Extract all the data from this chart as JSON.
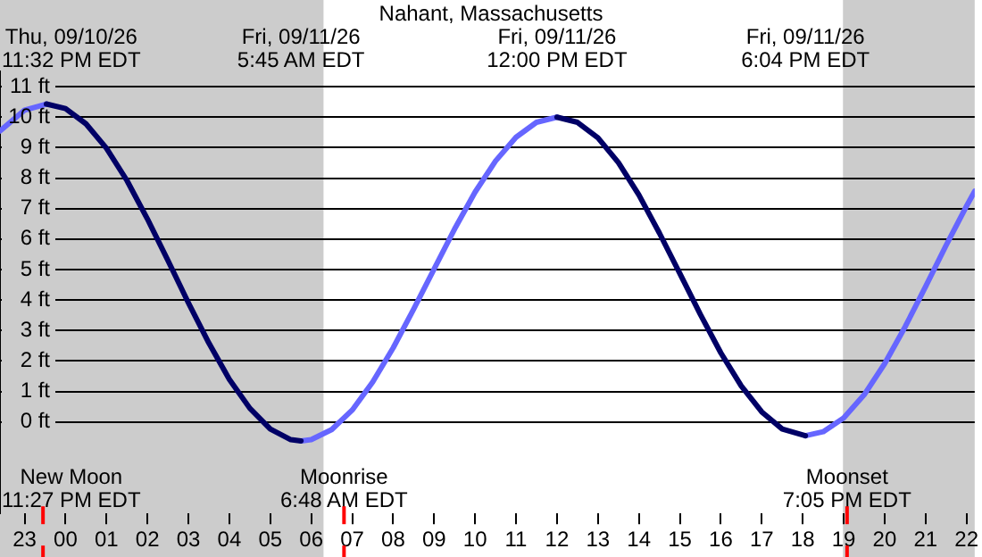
{
  "chart_data": {
    "type": "line",
    "title": "Nahant, Massachusetts",
    "xlim": [
      "--09-10T22:24",
      "--09-11T22:12"
    ],
    "xticks": [
      {
        "value": "--09-10T23:00",
        "label": "23"
      },
      {
        "value": "--09-11T00:00",
        "label": "00"
      },
      {
        "value": "--09-11T01:00",
        "label": "01"
      },
      {
        "value": "--09-11T02:00",
        "label": "02"
      },
      {
        "value": "--09-11T03:00",
        "label": "03"
      },
      {
        "value": "--09-11T04:00",
        "label": "04"
      },
      {
        "value": "--09-11T05:00",
        "label": "05"
      },
      {
        "value": "--09-11T06:00",
        "label": "06"
      },
      {
        "value": "--09-11T07:00",
        "label": "07"
      },
      {
        "value": "--09-11T08:00",
        "label": "08"
      },
      {
        "value": "--09-11T09:00",
        "label": "09"
      },
      {
        "value": "--09-11T10:00",
        "label": "10"
      },
      {
        "value": "--09-11T11:00",
        "label": "11"
      },
      {
        "value": "--09-11T12:00",
        "label": "12"
      },
      {
        "value": "--09-11T13:00",
        "label": "13"
      },
      {
        "value": "--09-11T14:00",
        "label": "14"
      },
      {
        "value": "--09-11T15:00",
        "label": "15"
      },
      {
        "value": "--09-11T16:00",
        "label": "16"
      },
      {
        "value": "--09-11T17:00",
        "label": "17"
      },
      {
        "value": "--09-11T18:00",
        "label": "18"
      },
      {
        "value": "--09-11T19:00",
        "label": "19"
      },
      {
        "value": "--09-11T20:00",
        "label": "20"
      },
      {
        "value": "--09-11T21:00",
        "label": "21"
      },
      {
        "value": "--09-11T22:00",
        "label": "22"
      }
    ],
    "ylim": [
      -3,
      11.5
    ],
    "yticks": [
      {
        "value": 0,
        "label": "0 ft"
      },
      {
        "value": 1,
        "label": "1 ft"
      },
      {
        "value": 2,
        "label": "2 ft"
      },
      {
        "value": 3,
        "label": "3 ft"
      },
      {
        "value": 4,
        "label": "4 ft"
      },
      {
        "value": 5,
        "label": "5 ft"
      },
      {
        "value": 6,
        "label": "6 ft"
      },
      {
        "value": 7,
        "label": "7 ft"
      },
      {
        "value": 8,
        "label": "8 ft"
      },
      {
        "value": 9,
        "label": "9 ft"
      },
      {
        "value": 10,
        "label": "10 ft"
      },
      {
        "value": 11,
        "label": "11 ft"
      }
    ],
    "grid": "y",
    "legend": false,
    "marker": "none",
    "line_style": "solid",
    "series": [
      {
        "color": "#000066",
        "x": [
          "--09-10T23:32",
          "--09-11T00:00",
          "--09-11T00:30",
          "--09-11T01:00",
          "--09-11T01:30",
          "--09-11T02:00",
          "--09-11T02:30",
          "--09-11T03:00",
          "--09-11T03:30",
          "--09-11T04:00",
          "--09-11T04:30",
          "--09-11T05:00",
          "--09-11T05:30",
          "--09-11T05:45",
          "--09-11T09:00",
          "--09-11T12:00",
          "--09-11T12:30",
          "--09-11T13:00",
          "--09-11T13:30",
          "--09-11T14:00",
          "--09-11T14:30",
          "--09-11T15:00",
          "--09-11T15:30",
          "--09-11T16:00",
          "--09-11T16:30",
          "--09-11T17:00",
          "--09-11T17:30",
          "--09-11T18:04"
        ],
        "values": [
          10.43,
          10.28,
          9.78,
          8.98,
          7.92,
          6.66,
          5.3,
          3.91,
          2.59,
          1.4,
          0.45,
          -0.23,
          -0.58,
          -0.62,
          null,
          10.0,
          9.83,
          9.32,
          8.51,
          7.45,
          6.2,
          4.87,
          3.53,
          2.27,
          1.18,
          0.33,
          -0.23,
          -0.45
        ]
      },
      {
        "color": "#6666ff",
        "x": [
          "--09-10T22:24",
          "--09-10T23:00",
          "--09-10T23:32",
          "--09-11T02:00",
          "--09-11T05:45",
          "--09-11T06:00",
          "--09-11T06:30",
          "--09-11T07:00",
          "--09-11T07:30",
          "--09-11T08:00",
          "--09-11T08:30",
          "--09-11T09:00",
          "--09-11T09:30",
          "--09-11T10:00",
          "--09-11T10:30",
          "--09-11T11:00",
          "--09-11T11:30",
          "--09-11T12:00",
          "--09-11T15:00",
          "--09-11T18:04",
          "--09-11T18:30",
          "--09-11T19:00",
          "--09-11T19:30",
          "--09-11T20:00",
          "--09-11T20:30",
          "--09-11T21:00",
          "--09-11T21:30",
          "--09-11T22:00",
          "--09-11T22:12"
        ],
        "values": [
          9.55,
          10.23,
          10.43,
          null,
          -0.62,
          -0.58,
          -0.25,
          0.39,
          1.31,
          2.43,
          3.7,
          5.02,
          6.33,
          7.54,
          8.56,
          9.34,
          9.83,
          10.0,
          null,
          -0.45,
          -0.32,
          0.13,
          0.89,
          1.91,
          3.12,
          4.44,
          5.79,
          7.08,
          7.57
        ]
      }
    ],
    "bands": [
      {
        "axis": "x",
        "from": "--09-10T22:24",
        "to": "--09-11T06:18",
        "color": "#cccccc"
      },
      {
        "axis": "x",
        "from": "--09-11T18:59",
        "to": "--09-11T22:12",
        "color": "#cccccc"
      }
    ],
    "ref_lines": [
      {
        "axis": "x",
        "value": "--09-10T23:27",
        "label": "New Moon\n11:27 PM EDT",
        "color": "#ff0000"
      },
      {
        "axis": "x",
        "value": "--09-11T06:48",
        "label": "Moonrise\n6:48 AM EDT",
        "color": "#ff0000"
      },
      {
        "axis": "x",
        "value": "--09-11T19:05",
        "label": "Moonset\n7:05 PM EDT",
        "color": "#ff0000"
      }
    ],
    "annotations": [
      "Thu, 09/10/26\n11:32 PM EDT",
      "Fri, 09/11/26\n5:45 AM EDT",
      "Fri, 09/11/26\n12:00 PM EDT",
      "Fri, 09/11/26\n6:04 PM EDT"
    ]
  }
}
